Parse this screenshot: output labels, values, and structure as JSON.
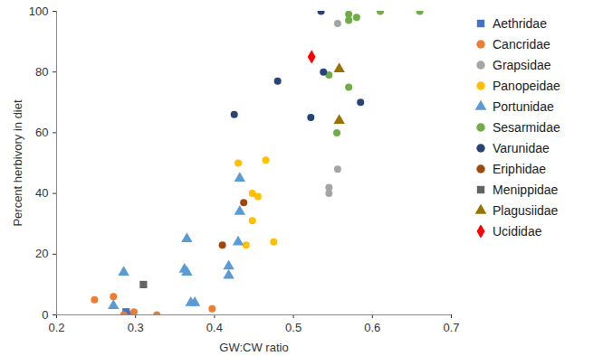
{
  "chart_data": {
    "type": "scatter",
    "x_label": "GW:CW ratio",
    "y_label": "Percent herbivory in diet",
    "xlim": [
      0.2,
      0.7
    ],
    "xticks": [
      0.2,
      0.3,
      0.4,
      0.5,
      0.6,
      0.7
    ],
    "ylim": [
      0,
      100
    ],
    "yticks": [
      0,
      20,
      40,
      60,
      80,
      100
    ],
    "grid": false,
    "legend": "right",
    "series": [
      {
        "name": "Aethridae",
        "color": "#4472c4",
        "marker": "square",
        "x": [
          0.288,
          0.29
        ],
        "values": [
          1,
          0
        ]
      },
      {
        "name": "Cancridae",
        "color": "#ed7d31",
        "marker": "circle",
        "x": [
          0.248,
          0.272,
          0.285,
          0.298,
          0.327,
          0.397
        ],
        "values": [
          5,
          6,
          0,
          1,
          0,
          2
        ]
      },
      {
        "name": "Grapsidae",
        "color": "#a5a5a5",
        "marker": "circle",
        "x": [
          0.556,
          0.545,
          0.545,
          0.556
        ],
        "values": [
          96,
          42,
          40,
          48
        ]
      },
      {
        "name": "Panopeidae",
        "color": "#ffc000",
        "marker": "circle",
        "x": [
          0.43,
          0.465,
          0.448,
          0.455,
          0.448,
          0.44,
          0.475
        ],
        "values": [
          50,
          51,
          40,
          39,
          31,
          23,
          24
        ]
      },
      {
        "name": "Portunidae",
        "color": "#5b9bd5",
        "marker": "triangle",
        "x": [
          0.272,
          0.285,
          0.365,
          0.362,
          0.365,
          0.37,
          0.375,
          0.418,
          0.418,
          0.43,
          0.432,
          0.432
        ],
        "values": [
          3,
          14,
          25,
          15,
          14,
          4,
          4,
          16,
          13,
          24,
          45,
          34
        ]
      },
      {
        "name": "Sesarmidae",
        "color": "#70ad47",
        "marker": "circle",
        "x": [
          0.57,
          0.57,
          0.58,
          0.61,
          0.66,
          0.545,
          0.57,
          0.555
        ],
        "values": [
          99,
          97,
          98,
          100,
          100,
          79,
          75,
          60
        ]
      },
      {
        "name": "Varunidae",
        "color": "#264478",
        "marker": "circle",
        "x": [
          0.535,
          0.48,
          0.538,
          0.425,
          0.522,
          0.585
        ],
        "values": [
          100,
          77,
          80,
          66,
          65,
          70
        ]
      },
      {
        "name": "Eriphidae",
        "color": "#9e480e",
        "marker": "circle",
        "x": [
          0.41,
          0.437
        ],
        "values": [
          23,
          37
        ]
      },
      {
        "name": "Menippidae",
        "color": "#636363",
        "marker": "square",
        "x": [
          0.31
        ],
        "values": [
          10
        ]
      },
      {
        "name": "Plagusiidae",
        "color": "#997300",
        "marker": "triangle",
        "x": [
          0.558,
          0.558
        ],
        "values": [
          81,
          64
        ]
      },
      {
        "name": "Ucididae",
        "color": "#ff0000",
        "marker": "diamond",
        "x": [
          0.523
        ],
        "values": [
          85
        ]
      }
    ]
  }
}
